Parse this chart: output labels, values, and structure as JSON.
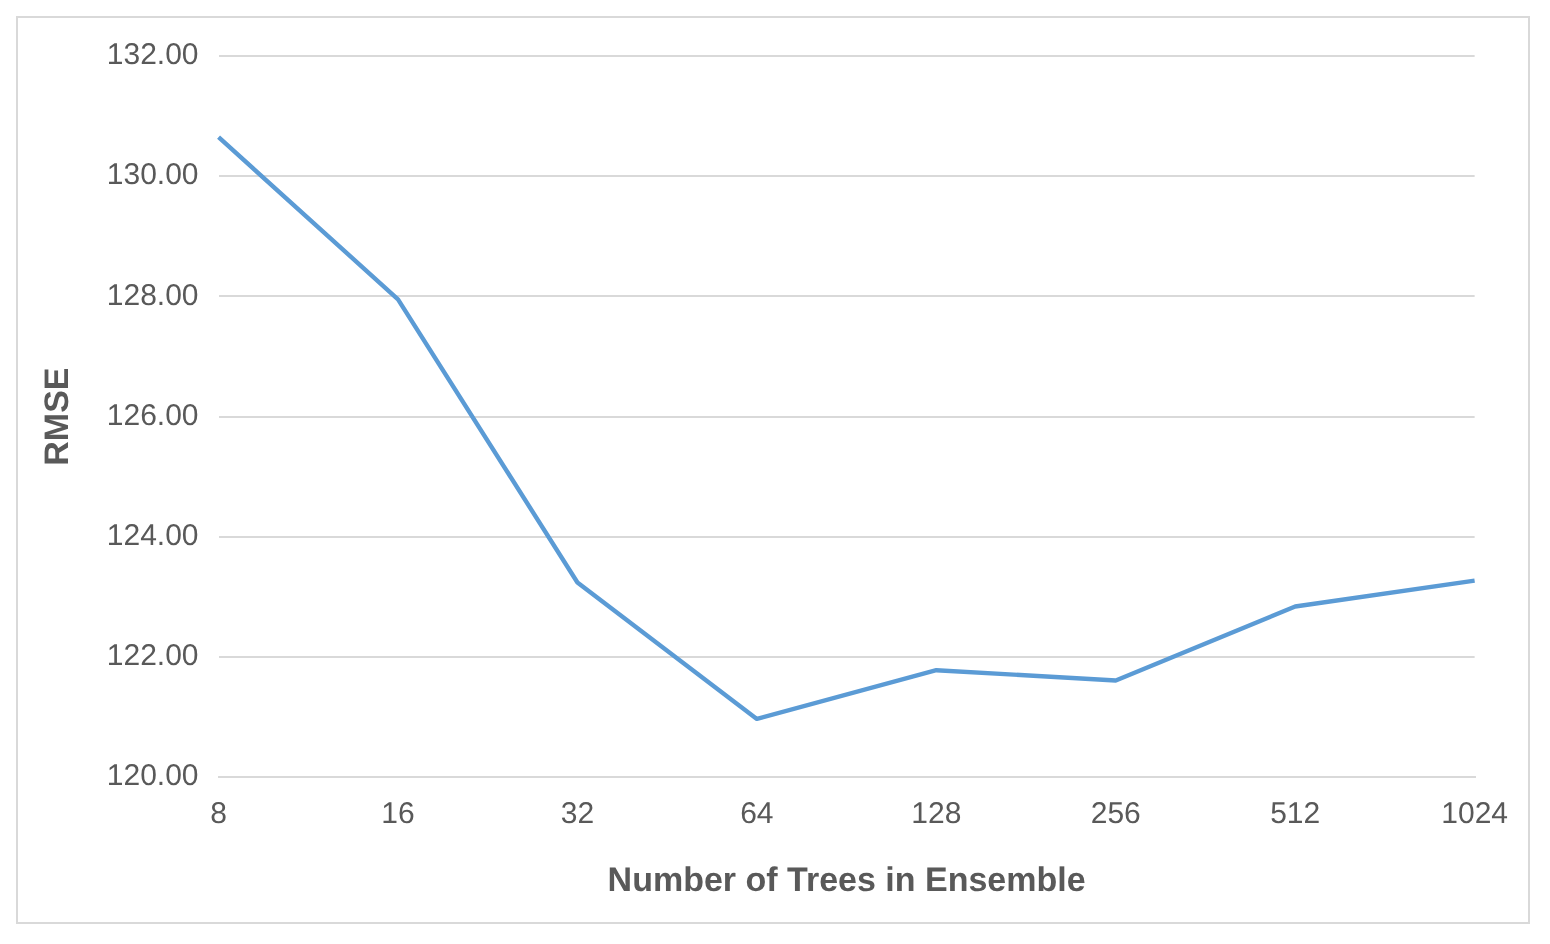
{
  "chart_data": {
    "type": "line",
    "xlabel": "Number of Trees in Ensemble",
    "ylabel": "RMSE",
    "categories": [
      "8",
      "16",
      "32",
      "64",
      "128",
      "256",
      "512",
      "1024"
    ],
    "series": [
      {
        "color": "#5b9bd5",
        "values": [
          130.65,
          127.95,
          123.24,
          120.97,
          121.78,
          121.61,
          122.84,
          123.27
        ]
      }
    ],
    "ylim": [
      120,
      132
    ],
    "yticks": [
      {
        "value": 120,
        "label": "120.00"
      },
      {
        "value": 122,
        "label": "122.00"
      },
      {
        "value": 124,
        "label": "124.00"
      },
      {
        "value": 126,
        "label": "126.00"
      },
      {
        "value": 128,
        "label": "128.00"
      },
      {
        "value": 130,
        "label": "130.00"
      },
      {
        "value": 132,
        "label": "132.00"
      }
    ],
    "grid": "y",
    "legend": false,
    "marker": "none",
    "line_style": "solid"
  }
}
